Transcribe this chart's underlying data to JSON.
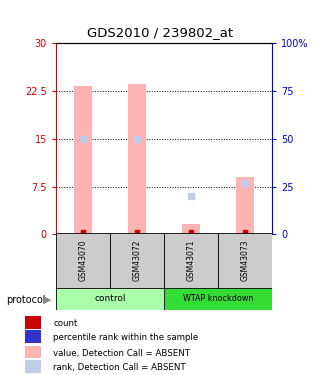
{
  "title": "GDS2010 / 239802_at",
  "samples": [
    "GSM43070",
    "GSM43072",
    "GSM43071",
    "GSM43073"
  ],
  "bar_values": [
    23.2,
    23.6,
    1.7,
    9.0
  ],
  "rank_values": [
    50,
    50,
    20,
    27
  ],
  "count_values": [
    0.4,
    0.4,
    0.4,
    0.4
  ],
  "ylim_left": [
    0,
    30
  ],
  "ylim_right": [
    0,
    100
  ],
  "yticks_left": [
    0,
    7.5,
    15,
    22.5,
    30
  ],
  "ytick_labels_left": [
    "0",
    "7.5",
    "15",
    "22.5",
    "30"
  ],
  "yticks_right": [
    0,
    25,
    50,
    75,
    100
  ],
  "ytick_labels_right": [
    "0",
    "25",
    "50",
    "75",
    "100%"
  ],
  "bar_color_absent": "#ffb3b3",
  "rank_color_absent": "#c0cce8",
  "count_color": "#cc0000",
  "left_axis_color": "#cc0000",
  "right_axis_color": "#0000cc",
  "group_colors": {
    "control": "#aaffaa",
    "WTAP knockdown": "#33dd33"
  },
  "sample_bg_color": "#cccccc",
  "legend_items": [
    {
      "label": "count",
      "color": "#cc0000"
    },
    {
      "label": "percentile rank within the sample",
      "color": "#3333cc"
    },
    {
      "label": "value, Detection Call = ABSENT",
      "color": "#ffb3b3"
    },
    {
      "label": "rank, Detection Call = ABSENT",
      "color": "#c0cce8"
    }
  ]
}
